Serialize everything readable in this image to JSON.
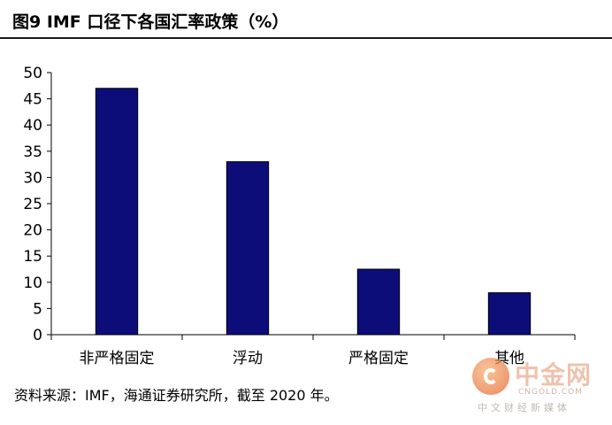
{
  "header": {
    "title": "图9   IMF 口径下各国汇率政策（%）"
  },
  "chart_data": {
    "type": "bar",
    "categories": [
      "非严格固定",
      "浮动",
      "严格固定",
      "其他"
    ],
    "values": [
      47,
      33,
      12.5,
      8
    ],
    "ylim": [
      0,
      50
    ],
    "yticks": [
      "0",
      "5",
      "10",
      "15",
      "20",
      "25",
      "30",
      "35",
      "40",
      "45",
      "50"
    ],
    "grid": false,
    "bar_color": "#0d0d7a"
  },
  "footer": {
    "source": "资料来源：IMF，海通证券研究所，截至 2020 年。"
  },
  "watermark": {
    "brand": "中金网",
    "site": "CNGOLD.COM",
    "tagline": "中文财经新媒体"
  }
}
